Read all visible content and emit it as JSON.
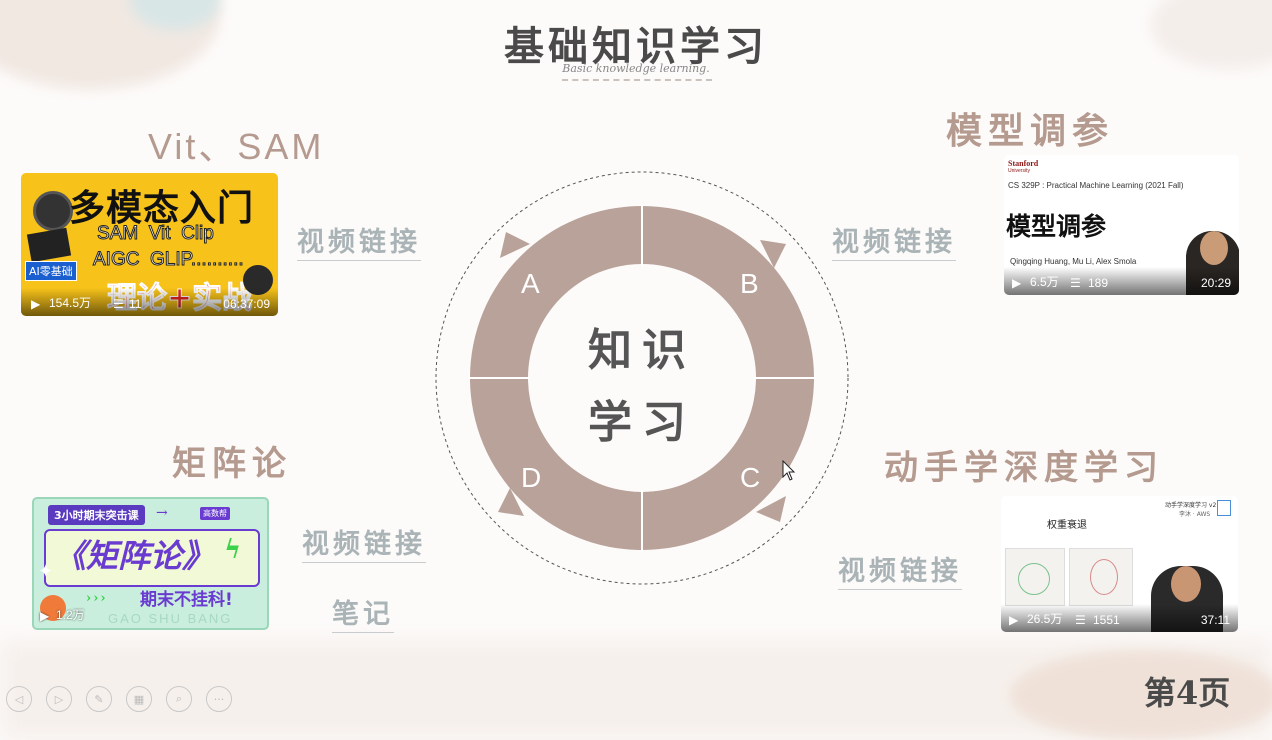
{
  "slide": {
    "title": "基础知识学习",
    "subtitle": "Basic knowledge learning.",
    "page_number": "第4页"
  },
  "sections": {
    "top_left": {
      "heading": "Vit、SAM",
      "link": "视频链接"
    },
    "top_right": {
      "heading": "模型调参",
      "link": "视频链接"
    },
    "bottom_left": {
      "heading": "矩阵论",
      "link": "视频链接",
      "notes": "笔记"
    },
    "bottom_right": {
      "heading": "动手学深度学习",
      "link": "视频链接"
    }
  },
  "center": {
    "line1": "知识",
    "line2": "学习",
    "labels": [
      "A",
      "B",
      "C",
      "D"
    ],
    "ring_color": "#b9a29a"
  },
  "videos": {
    "v1": {
      "title": "多模态入门",
      "line1": "SAM  Vit  Clip",
      "line2": "AIGC  GLIP..........",
      "banner": "理论+实战",
      "badge": "AI零基础",
      "views": "154.5万",
      "danmaku": "11",
      "duration": "06:37:09"
    },
    "v2": {
      "org": "Stanford",
      "org_sub": "University",
      "course": "CS 329P : Practical Machine Learning (2021 Fall)",
      "title": "模型调参",
      "authors": "Qingqing Huang, Mu Li, Alex Smola",
      "views": "6.5万",
      "danmaku": "189",
      "duration": "20:29"
    },
    "v3": {
      "tag": "3小时期末突击课",
      "tag2": "高数帮",
      "title": "《矩阵论》",
      "slogan": "期末不挂科!",
      "brand": "GAO SHU BANG",
      "views": "1.2万"
    },
    "v4": {
      "course": "动手学深度学习 v2",
      "author": "李沐 · AWS",
      "title": "权重衰退",
      "views": "26.5万",
      "danmaku": "1551",
      "duration": "37:11"
    }
  },
  "toolbar": {
    "prev": "◁",
    "next": "▷",
    "pen": "✎",
    "grid": "▦",
    "zoom": "⌕",
    "more": "···"
  },
  "colors": {
    "accent": "#b59a8f",
    "ring": "#b9a29a",
    "link": "#aab4b7"
  }
}
